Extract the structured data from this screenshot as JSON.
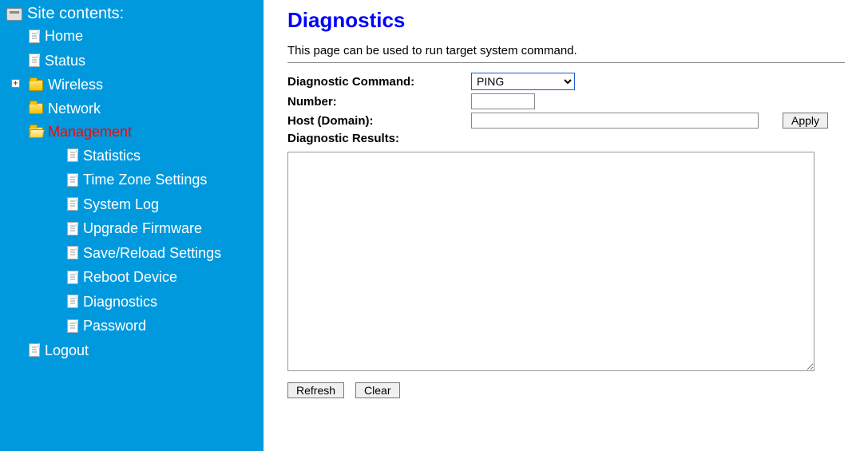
{
  "colors": {
    "sidebar_bg": "#0099dd",
    "sidebar_text": "#ffffff",
    "active_item": "#ff0000",
    "title_color": "#0000ff",
    "border_gray": "#888888",
    "select_border": "#1a57d6",
    "page_bg": "#ffffff"
  },
  "sidebar": {
    "title": "Site contents:",
    "items": {
      "home": "Home",
      "status": "Status",
      "wireless": "Wireless",
      "network": "Network",
      "management": "Management",
      "logout": "Logout"
    },
    "management_children": {
      "statistics": "Statistics",
      "timezone": "Time Zone Settings",
      "syslog": "System Log",
      "upgrade": "Upgrade Firmware",
      "save_reload": "Save/Reload Settings",
      "reboot": "Reboot Device",
      "diagnostics": "Diagnostics",
      "password": "Password"
    },
    "wireless_expand_symbol": "+"
  },
  "main": {
    "title": "Diagnostics",
    "description": "This page can be used to run target system command.",
    "labels": {
      "command": "Diagnostic Command:",
      "number": "Number:",
      "host": "Host (Domain):",
      "results": "Diagnostic Results:"
    },
    "command_select": {
      "selected": "PING",
      "options": [
        "PING"
      ]
    },
    "number_value": "",
    "host_value": "",
    "results_value": "",
    "buttons": {
      "apply": "Apply",
      "refresh": "Refresh",
      "clear": "Clear"
    }
  }
}
